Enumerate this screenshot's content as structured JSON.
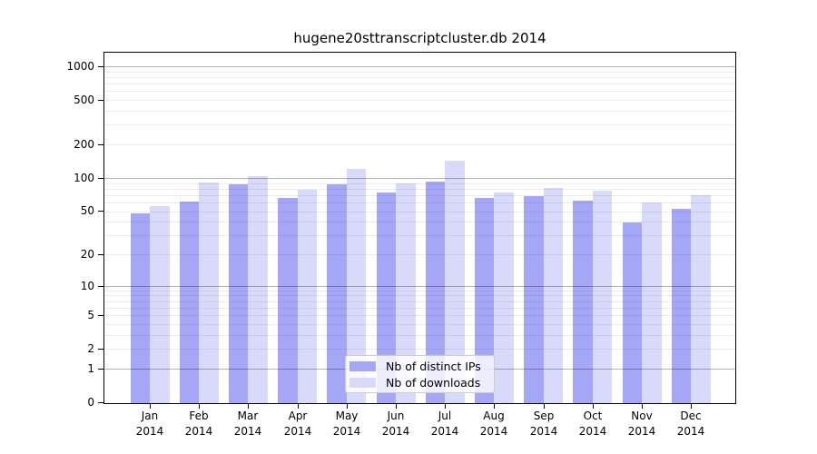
{
  "title": "hugene20sttranscriptcluster.db 2014",
  "chart_data": {
    "type": "bar",
    "title": "hugene20sttranscriptcluster.db 2014",
    "categories": [
      "Jan 2014",
      "Feb 2014",
      "Mar 2014",
      "Apr 2014",
      "May 2014",
      "Jun 2014",
      "Jul 2014",
      "Aug 2014",
      "Sep 2014",
      "Oct 2014",
      "Nov 2014",
      "Dec 2014"
    ],
    "months": [
      "Jan",
      "Feb",
      "Mar",
      "Apr",
      "May",
      "Jun",
      "Jul",
      "Aug",
      "Sep",
      "Oct",
      "Nov",
      "Dec"
    ],
    "year": "2014",
    "series": [
      {
        "name": "Nb of distinct IPs",
        "color": "#a6a6f7",
        "values": [
          48,
          61,
          87,
          66,
          87,
          74,
          92,
          66,
          68,
          62,
          39,
          52
        ]
      },
      {
        "name": "Nb of downloads",
        "color": "#d9d9fa",
        "values": [
          55,
          90,
          104,
          78,
          120,
          89,
          142,
          74,
          81,
          77,
          60,
          70
        ]
      }
    ],
    "yscale": "log10(value+1)",
    "yticks": [
      0,
      1,
      2,
      5,
      10,
      20,
      50,
      100,
      200,
      500,
      1000
    ],
    "ylim": [
      0,
      1300
    ],
    "xlabel": "",
    "ylabel": "",
    "grid": true,
    "legend_position": "bottom-center"
  },
  "colors": {
    "bar_ips": "#a6a6f7",
    "bar_downloads": "#d9d9fa",
    "major_gridline": "#b3b3b3",
    "minor_gridline": "#ececec",
    "axis": "#000000",
    "background": "#ffffff"
  }
}
